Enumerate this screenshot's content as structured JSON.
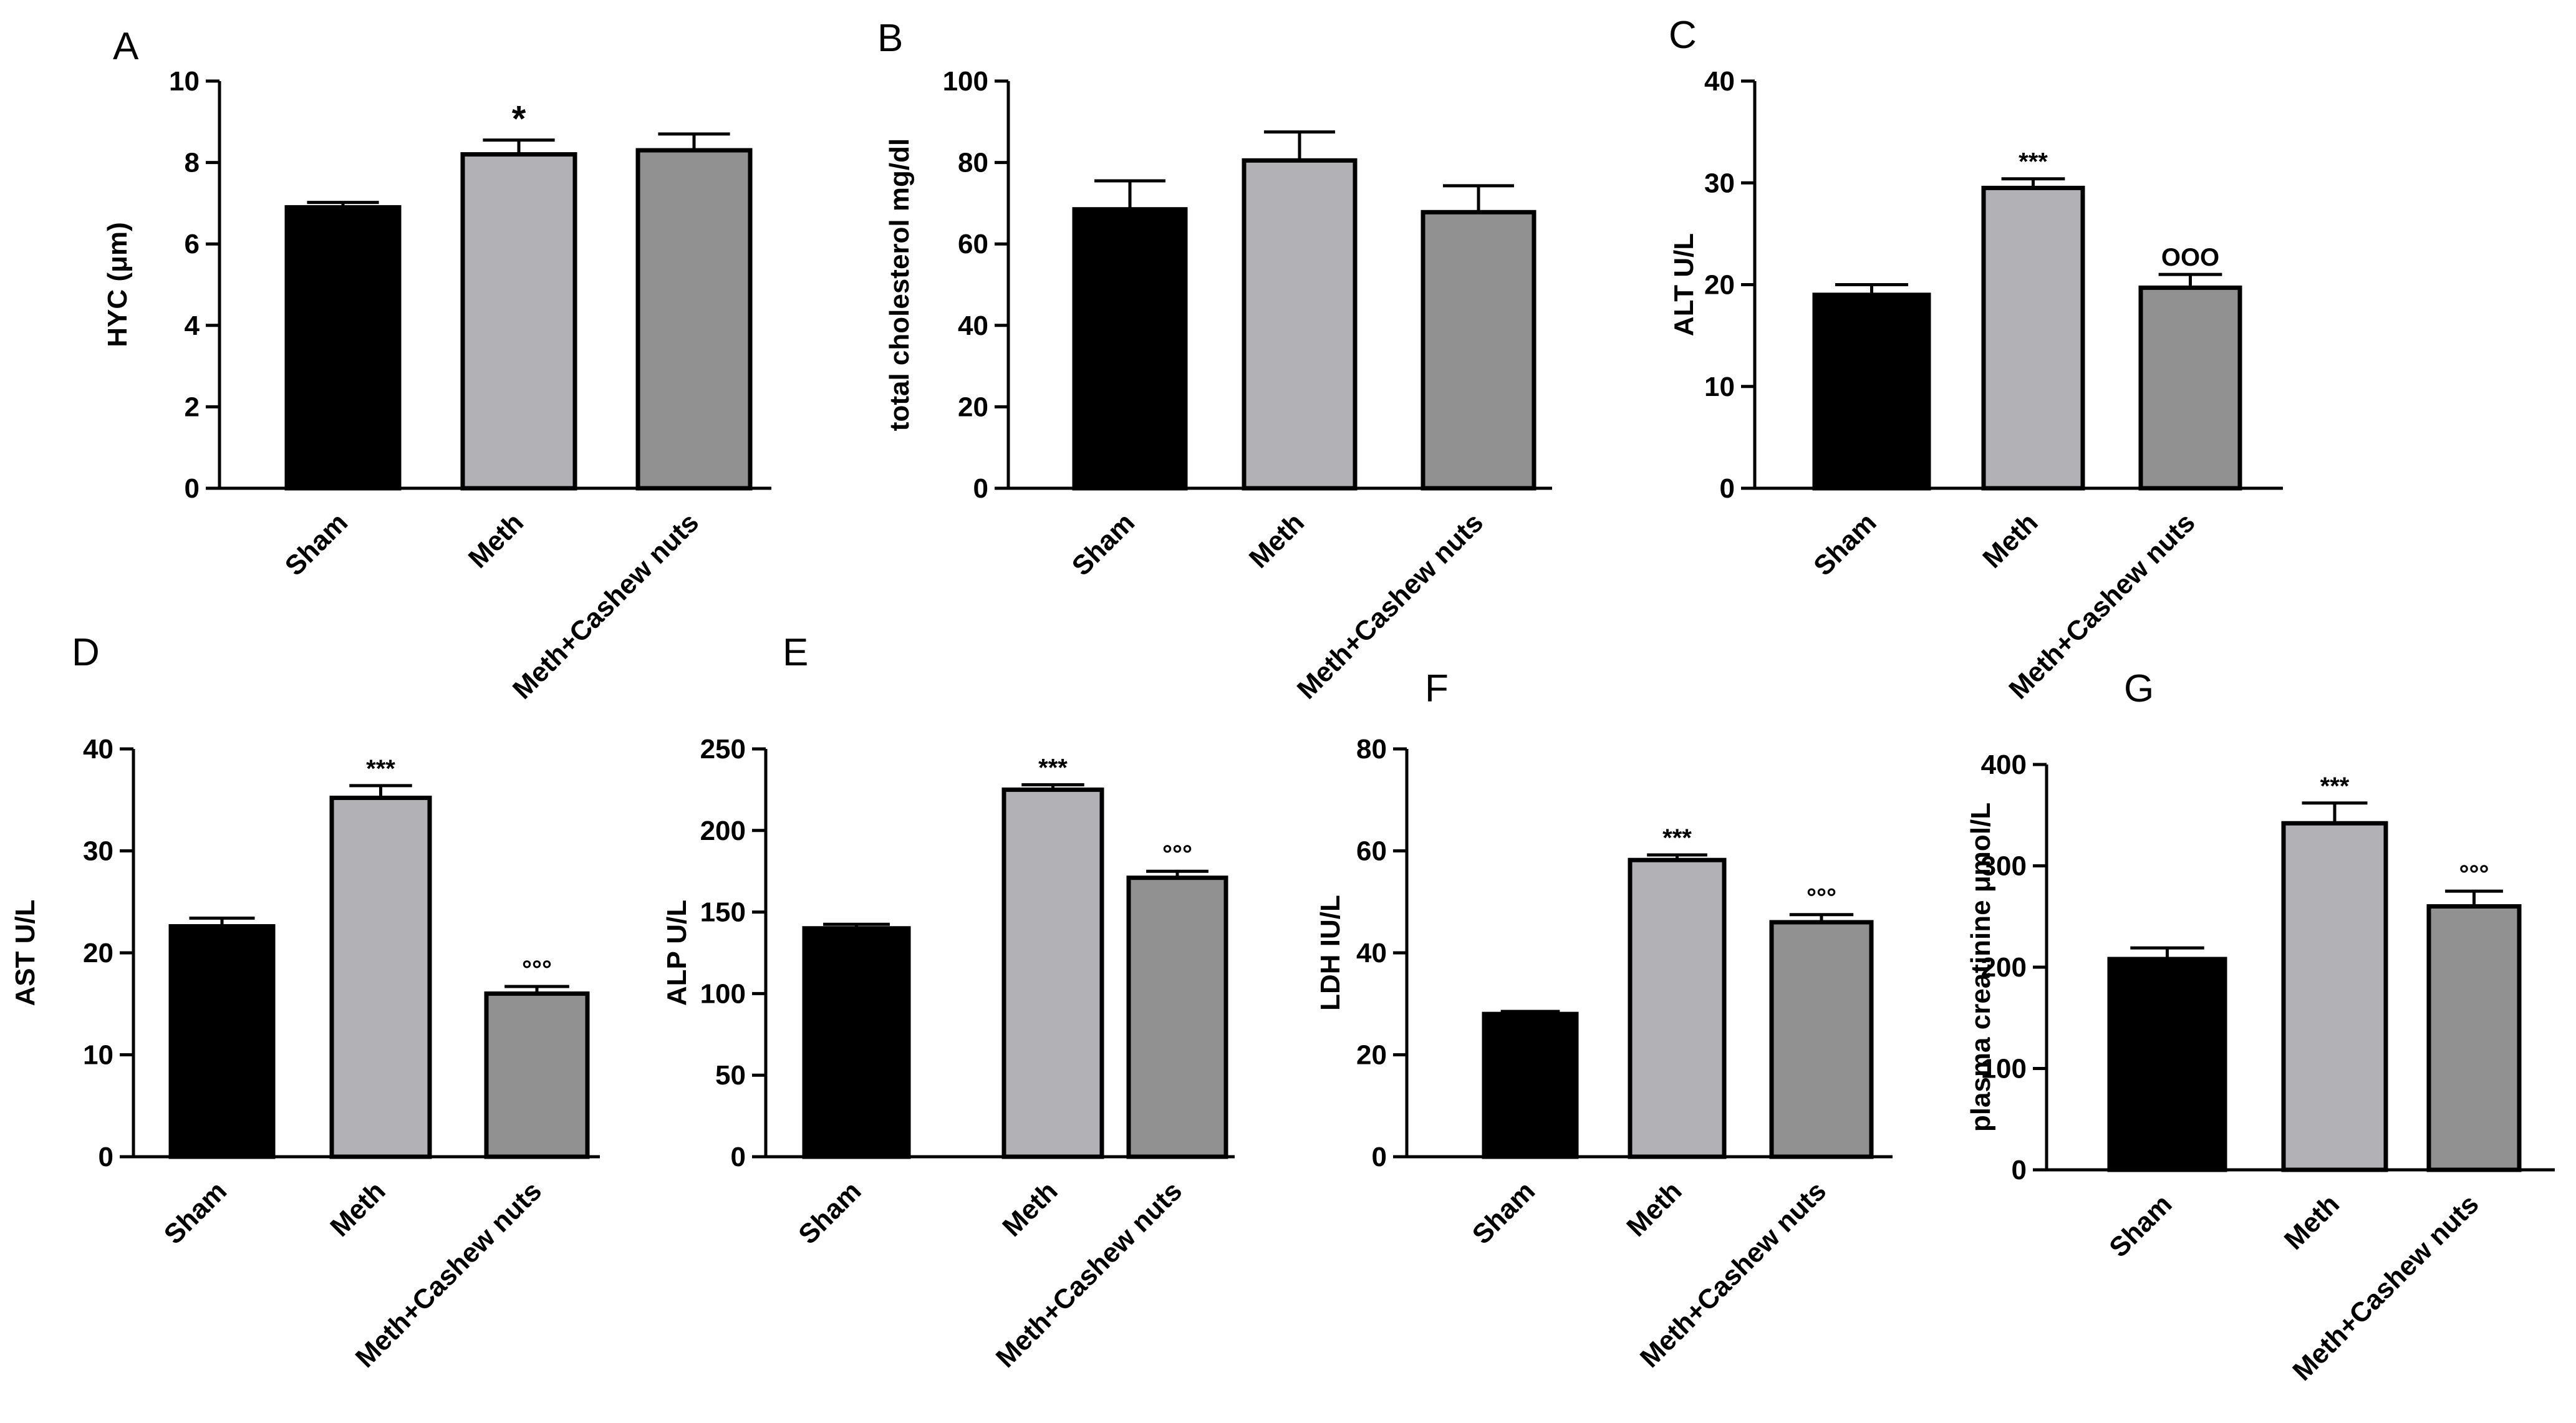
{
  "colors": {
    "Sham": "#000000",
    "Meth": "#B2B1B6",
    "Meth+Cashew nuts": "#919191",
    "outline": "#000000"
  },
  "chart_data": [
    {
      "id": "A",
      "type": "bar",
      "panel_label": "A",
      "ylabel": "HYC (μm)",
      "ylim": [
        0,
        10
      ],
      "yticks": [
        0,
        2,
        4,
        6,
        8,
        10
      ],
      "categories": [
        "Sham",
        "Meth",
        "Meth+Cashew nuts"
      ],
      "values": [
        6.9,
        8.2,
        8.3
      ],
      "errors": [
        0.12,
        0.35,
        0.4
      ],
      "annotations": [
        "",
        "*",
        ""
      ]
    },
    {
      "id": "B",
      "type": "bar",
      "panel_label": "B",
      "ylabel": "total cholesterol mg/dl",
      "ylim": [
        0,
        100
      ],
      "yticks": [
        0,
        20,
        40,
        60,
        80,
        100
      ],
      "categories": [
        "Sham",
        "Meth",
        "Meth+Cashew nuts"
      ],
      "values": [
        68.5,
        80.5,
        67.8
      ],
      "errors": [
        7,
        7,
        6.5
      ],
      "annotations": [
        "",
        "",
        ""
      ]
    },
    {
      "id": "C",
      "type": "bar",
      "panel_label": "C",
      "ylabel": "ALT U/L",
      "ylim": [
        0,
        40
      ],
      "yticks": [
        0,
        10,
        20,
        30,
        40
      ],
      "categories": [
        "Sham",
        "Meth",
        "Meth+Cashew nuts"
      ],
      "values": [
        19,
        29.5,
        19.7
      ],
      "errors": [
        1,
        0.9,
        1.3
      ],
      "annotations": [
        "",
        "***",
        "OOO"
      ]
    },
    {
      "id": "D",
      "type": "bar",
      "panel_label": "D",
      "ylabel": "AST U/L",
      "ylim": [
        0,
        40
      ],
      "yticks": [
        0,
        10,
        20,
        30,
        40
      ],
      "categories": [
        "Sham",
        "Meth",
        "Meth+Cashew nuts"
      ],
      "values": [
        22.6,
        35.2,
        16
      ],
      "errors": [
        0.8,
        1.2,
        0.7
      ],
      "annotations": [
        "",
        "***",
        "°°°"
      ]
    },
    {
      "id": "E",
      "type": "bar",
      "panel_label": "E",
      "ylabel": "ALP U/L",
      "ylim": [
        0,
        250
      ],
      "yticks": [
        0,
        50,
        100,
        150,
        200,
        250
      ],
      "categories": [
        "Sham",
        "Meth",
        "Meth+Cashew nuts"
      ],
      "values": [
        140,
        225,
        171
      ],
      "errors": [
        2.5,
        3,
        4
      ],
      "annotations": [
        "",
        "***",
        "°°°"
      ]
    },
    {
      "id": "F",
      "type": "bar",
      "panel_label": "F",
      "ylabel": "LDH IU/L",
      "ylim": [
        0,
        80
      ],
      "yticks": [
        0,
        20,
        40,
        60,
        80
      ],
      "categories": [
        "Sham",
        "Meth",
        "Meth+Cashew nuts"
      ],
      "values": [
        28,
        58.2,
        46
      ],
      "errors": [
        0.5,
        1,
        1.5
      ],
      "annotations": [
        "",
        "***",
        "°°°"
      ]
    },
    {
      "id": "G",
      "type": "bar",
      "panel_label": "G",
      "ylabel": "plasma creatinine μmol/L",
      "ylim": [
        0,
        400
      ],
      "yticks": [
        0,
        100,
        200,
        300,
        400
      ],
      "categories": [
        "Sham",
        "Meth",
        "Meth+Cashew nuts"
      ],
      "values": [
        208,
        342,
        260
      ],
      "errors": [
        11,
        20,
        15
      ],
      "annotations": [
        "",
        "***",
        "°°°"
      ]
    }
  ]
}
